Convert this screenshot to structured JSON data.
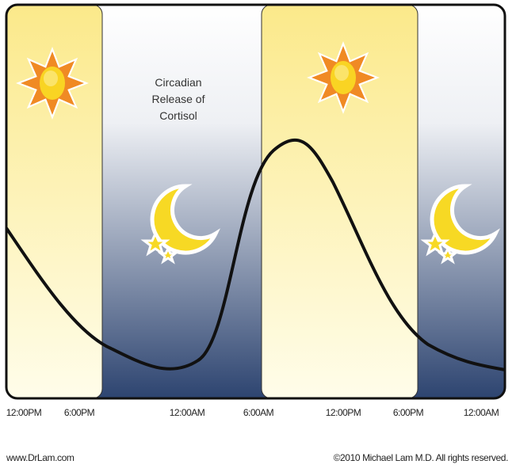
{
  "title": "Circadian\nRelease of\nCortisol",
  "time_labels": [
    "12:00PM",
    "6:00PM",
    "12:00AM",
    "6:00AM",
    "12:00PM",
    "6:00PM",
    "12:00AM"
  ],
  "footer": {
    "website": "www.DrLam.com",
    "copyright": "©2010 Michael Lam M.D. All rights reserved."
  },
  "colors": {
    "day_top": "#fbe98a",
    "day_bottom": "#fffdea",
    "night_top": "#ffffff",
    "night_bottom": "#2d4470",
    "curve": "#111111",
    "sun": "#f08a24",
    "moon": "#f7d924"
  },
  "icons": [
    "sun-icon",
    "moon-stars-icon",
    "sun-icon",
    "moon-stars-icon"
  ]
}
